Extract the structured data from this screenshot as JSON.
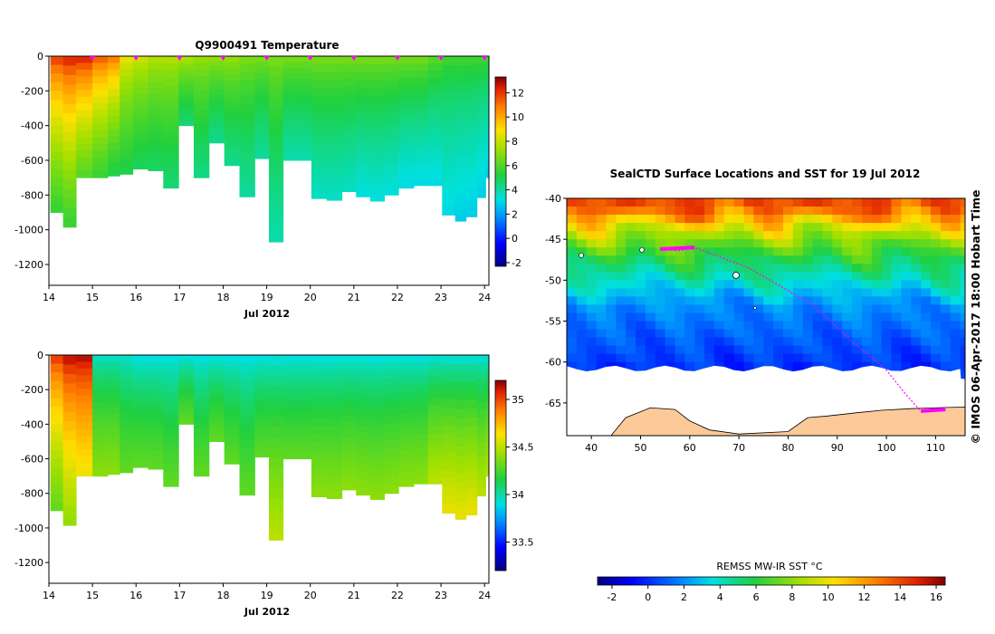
{
  "figure": {
    "top_title": "Q9900491  Temperature",
    "map_title": "SealCTD Surface Locations and SST for 19 Jul 2012",
    "credit": "© IMOS 06-Apr-2017 18:00 Hobart Time",
    "sst_label": "REMSS MW-IR SST °C"
  },
  "chart_data": [
    {
      "type": "heatmap",
      "title": "Q9900491  Temperature",
      "variable": "temperature",
      "xlabel": "Jul 2012",
      "ylabel": "",
      "x_ticks": [
        "14",
        "15",
        "16",
        "17",
        "18",
        "19",
        "20",
        "21",
        "22",
        "23",
        "24"
      ],
      "xlim": [
        14,
        24.1
      ],
      "y_ticks": [
        "0",
        "-200",
        "-400",
        "-600",
        "-800",
        "-1000",
        "-1200"
      ],
      "ylim": [
        -1320,
        0
      ],
      "colorbar": {
        "ticks": [
          "12",
          "10",
          "8",
          "6",
          "4",
          "2",
          "0",
          "-2"
        ],
        "range": [
          -2.3,
          13.3
        ]
      },
      "profile_marker_days": [
        15,
        16,
        17,
        18,
        19,
        20,
        21,
        22,
        23,
        24
      ],
      "profiles": [
        {
          "day": 14.2,
          "max_depth": -900,
          "surface": 12.5,
          "deep": 5.5
        },
        {
          "day": 14.45,
          "max_depth": -985,
          "surface": 13.0,
          "deep": 5.5
        },
        {
          "day": 14.8,
          "max_depth": -700,
          "surface": 13.0,
          "deep": 6.0
        },
        {
          "day": 15.2,
          "max_depth": -700,
          "surface": 12.0,
          "deep": 5.5
        },
        {
          "day": 15.5,
          "max_depth": -690,
          "surface": 11.5,
          "deep": 5.0
        },
        {
          "day": 15.75,
          "max_depth": -680,
          "surface": 9.0,
          "deep": 5.0
        },
        {
          "day": 16.1,
          "max_depth": -650,
          "surface": 8.5,
          "deep": 4.8
        },
        {
          "day": 16.45,
          "max_depth": -660,
          "surface": 8.0,
          "deep": 4.7
        },
        {
          "day": 16.8,
          "max_depth": -760,
          "surface": 8.0,
          "deep": 4.5
        },
        {
          "day": 17.15,
          "max_depth": -400,
          "surface": 8.0,
          "deep": 4.5
        },
        {
          "day": 17.5,
          "max_depth": -700,
          "surface": 7.5,
          "deep": 4.3
        },
        {
          "day": 17.85,
          "max_depth": -500,
          "surface": 7.5,
          "deep": 4.2
        },
        {
          "day": 18.2,
          "max_depth": -630,
          "surface": 7.5,
          "deep": 4.2
        },
        {
          "day": 18.55,
          "max_depth": -810,
          "surface": 7.0,
          "deep": 4.0
        },
        {
          "day": 18.9,
          "max_depth": -590,
          "surface": 7.0,
          "deep": 4.0
        },
        {
          "day": 19.2,
          "max_depth": -1070,
          "surface": 7.0,
          "deep": 3.8
        },
        {
          "day": 19.55,
          "max_depth": -600,
          "surface": 7.0,
          "deep": 3.8
        },
        {
          "day": 19.85,
          "max_depth": -600,
          "surface": 7.0,
          "deep": 3.8
        },
        {
          "day": 20.2,
          "max_depth": -820,
          "surface": 7.0,
          "deep": 3.5
        },
        {
          "day": 20.55,
          "max_depth": -830,
          "surface": 7.0,
          "deep": 3.5
        },
        {
          "day": 20.9,
          "max_depth": -780,
          "surface": 7.0,
          "deep": 3.5
        },
        {
          "day": 21.2,
          "max_depth": -810,
          "surface": 7.0,
          "deep": 3.2
        },
        {
          "day": 21.55,
          "max_depth": -835,
          "surface": 7.0,
          "deep": 3.2
        },
        {
          "day": 21.85,
          "max_depth": -800,
          "surface": 7.0,
          "deep": 3.2
        },
        {
          "day": 22.2,
          "max_depth": -760,
          "surface": 7.0,
          "deep": 3.0
        },
        {
          "day": 22.55,
          "max_depth": -745,
          "surface": 7.0,
          "deep": 3.0
        },
        {
          "day": 22.85,
          "max_depth": -745,
          "surface": 6.5,
          "deep": 3.0
        },
        {
          "day": 23.2,
          "max_depth": -915,
          "surface": 6.0,
          "deep": 3.0
        },
        {
          "day": 23.45,
          "max_depth": -950,
          "surface": 6.0,
          "deep": 2.8
        },
        {
          "day": 23.7,
          "max_depth": -925,
          "surface": 6.0,
          "deep": 2.8
        },
        {
          "day": 23.95,
          "max_depth": -815,
          "surface": 6.0,
          "deep": 2.8
        },
        {
          "day": 24.1,
          "max_depth": -700,
          "surface": 6.0,
          "deep": 2.8
        }
      ]
    },
    {
      "type": "heatmap",
      "title": "",
      "variable": "salinity",
      "xlabel": "Jul 2012",
      "ylabel": "",
      "x_ticks": [
        "14",
        "15",
        "16",
        "17",
        "18",
        "19",
        "20",
        "21",
        "22",
        "23",
        "24"
      ],
      "xlim": [
        14,
        24.1
      ],
      "y_ticks": [
        "0",
        "-200",
        "-400",
        "-600",
        "-800",
        "-1000",
        "-1200"
      ],
      "ylim": [
        -1320,
        0
      ],
      "colorbar": {
        "ticks": [
          "35",
          "34.5",
          "34",
          "33.5"
        ],
        "range": [
          33.2,
          35.2
        ]
      },
      "profiles_same_as": "temperature",
      "profiles": [
        {
          "day": 14.2,
          "max_depth": -900,
          "surface": 35.1,
          "deep": 34.3
        },
        {
          "day": 14.45,
          "max_depth": -985,
          "surface": 35.2,
          "deep": 34.4
        },
        {
          "day": 14.8,
          "max_depth": -700,
          "surface": 35.2,
          "deep": 34.6
        },
        {
          "day": 15.2,
          "max_depth": -700,
          "surface": 33.9,
          "deep": 34.4
        },
        {
          "day": 15.5,
          "max_depth": -690,
          "surface": 33.9,
          "deep": 34.4
        },
        {
          "day": 15.75,
          "max_depth": -680,
          "surface": 33.9,
          "deep": 34.3
        },
        {
          "day": 16.1,
          "max_depth": -650,
          "surface": 33.85,
          "deep": 34.3
        },
        {
          "day": 16.45,
          "max_depth": -660,
          "surface": 33.85,
          "deep": 34.3
        },
        {
          "day": 16.8,
          "max_depth": -760,
          "surface": 33.85,
          "deep": 34.3
        },
        {
          "day": 17.15,
          "max_depth": -400,
          "surface": 33.85,
          "deep": 34.3
        },
        {
          "day": 17.5,
          "max_depth": -700,
          "surface": 33.85,
          "deep": 34.3
        },
        {
          "day": 17.85,
          "max_depth": -500,
          "surface": 33.85,
          "deep": 34.3
        },
        {
          "day": 18.2,
          "max_depth": -630,
          "surface": 33.85,
          "deep": 34.3
        },
        {
          "day": 18.55,
          "max_depth": -810,
          "surface": 33.85,
          "deep": 34.3
        },
        {
          "day": 18.9,
          "max_depth": -590,
          "surface": 33.85,
          "deep": 34.3
        },
        {
          "day": 19.2,
          "max_depth": -1070,
          "surface": 33.85,
          "deep": 34.5
        },
        {
          "day": 19.55,
          "max_depth": -600,
          "surface": 33.85,
          "deep": 34.3
        },
        {
          "day": 19.85,
          "max_depth": -600,
          "surface": 33.85,
          "deep": 34.3
        },
        {
          "day": 20.2,
          "max_depth": -820,
          "surface": 33.85,
          "deep": 34.4
        },
        {
          "day": 20.55,
          "max_depth": -830,
          "surface": 33.85,
          "deep": 34.4
        },
        {
          "day": 20.9,
          "max_depth": -780,
          "surface": 33.85,
          "deep": 34.4
        },
        {
          "day": 21.2,
          "max_depth": -810,
          "surface": 33.85,
          "deep": 34.4
        },
        {
          "day": 21.55,
          "max_depth": -835,
          "surface": 33.85,
          "deep": 34.4
        },
        {
          "day": 21.85,
          "max_depth": -800,
          "surface": 33.85,
          "deep": 34.4
        },
        {
          "day": 22.2,
          "max_depth": -760,
          "surface": 33.85,
          "deep": 34.4
        },
        {
          "day": 22.55,
          "max_depth": -745,
          "surface": 33.85,
          "deep": 34.4
        },
        {
          "day": 22.85,
          "max_depth": -745,
          "surface": 33.85,
          "deep": 34.5
        },
        {
          "day": 23.2,
          "max_depth": -915,
          "surface": 33.85,
          "deep": 34.6
        },
        {
          "day": 23.45,
          "max_depth": -950,
          "surface": 33.85,
          "deep": 34.6
        },
        {
          "day": 23.7,
          "max_depth": -925,
          "surface": 33.85,
          "deep": 34.6
        },
        {
          "day": 23.95,
          "max_depth": -815,
          "surface": 33.85,
          "deep": 34.5
        },
        {
          "day": 24.1,
          "max_depth": -700,
          "surface": 33.85,
          "deep": 34.5
        }
      ]
    },
    {
      "type": "heatmap",
      "title": "SealCTD Surface Locations and SST for 19 Jul 2012",
      "variable": "sea surface temperature map",
      "xlabel": "",
      "ylabel": "",
      "x_ticks": [
        "40",
        "50",
        "60",
        "70",
        "80",
        "90",
        "100",
        "110"
      ],
      "xlim": [
        35,
        116
      ],
      "y_ticks": [
        "-40",
        "-45",
        "-50",
        "-55",
        "-60",
        "-65"
      ],
      "ylim": [
        -69,
        -40
      ],
      "colorbar": {
        "label": "REMSS MW-IR SST °C",
        "ticks": [
          "-2",
          "0",
          "2",
          "4",
          "6",
          "8",
          "10",
          "12",
          "14",
          "16"
        ],
        "range": [
          -2.8,
          16.5
        ]
      },
      "sst_bands": [
        {
          "lat": -41,
          "sst": 14
        },
        {
          "lat": -44,
          "sst": 9
        },
        {
          "lat": -47,
          "sst": 6
        },
        {
          "lat": -50,
          "sst": 4
        },
        {
          "lat": -53,
          "sst": 2
        },
        {
          "lat": -57,
          "sst": 1
        },
        {
          "lat": -61,
          "sst": 0
        }
      ],
      "seal_track": [
        [
          54,
          -46.2
        ],
        [
          58,
          -46.4
        ],
        [
          61,
          -46.0
        ],
        [
          72,
          -48.5
        ],
        [
          85,
          -53
        ],
        [
          93,
          -57.5
        ],
        [
          100,
          -61
        ],
        [
          104,
          -64
        ],
        [
          107,
          -66
        ],
        [
          112,
          -65.8
        ]
      ],
      "antarctica_coast": [
        [
          44,
          -69
        ],
        [
          47,
          -66.8
        ],
        [
          52,
          -65.6
        ],
        [
          57,
          -65.8
        ],
        [
          60,
          -67.2
        ],
        [
          64,
          -68.3
        ],
        [
          70,
          -68.8
        ],
        [
          80,
          -68.5
        ],
        [
          84,
          -66.8
        ],
        [
          88,
          -66.6
        ],
        [
          94,
          -66.2
        ],
        [
          99,
          -65.9
        ],
        [
          105,
          -65.7
        ],
        [
          110,
          -65.6
        ],
        [
          116,
          -65.5
        ],
        [
          116,
          -69
        ]
      ]
    }
  ]
}
